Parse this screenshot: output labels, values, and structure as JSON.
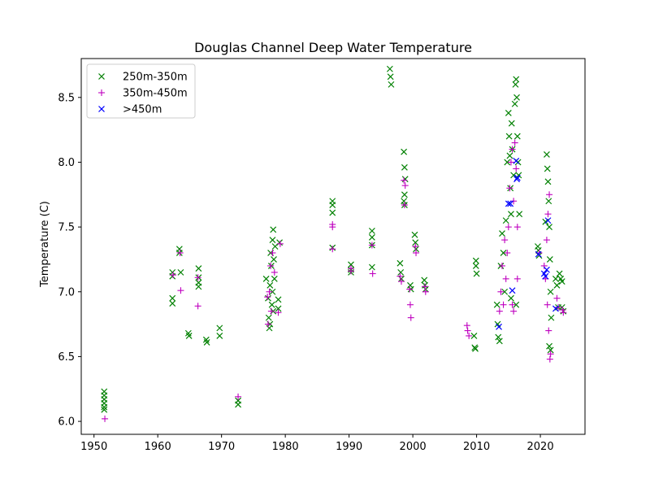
{
  "chart_data": {
    "type": "scatter",
    "title": "Douglas Channel Deep Water Temperature",
    "xlabel": "",
    "ylabel": "Temperature (C)",
    "xlim": [
      1948,
      2027
    ],
    "ylim": [
      5.9,
      8.8
    ],
    "xticks": [
      1950,
      1960,
      1970,
      1980,
      1990,
      2000,
      2010,
      2020
    ],
    "yticks": [
      6.0,
      6.5,
      7.0,
      7.5,
      8.0,
      8.5
    ],
    "grid": false,
    "legend_position": "top-left",
    "series": [
      {
        "name": "250m-350m",
        "marker": "x",
        "color": "#008000",
        "points": [
          [
            1951.6,
            6.23
          ],
          [
            1951.6,
            6.2
          ],
          [
            1951.6,
            6.17
          ],
          [
            1951.6,
            6.14
          ],
          [
            1951.6,
            6.11
          ],
          [
            1951.6,
            6.09
          ],
          [
            1962.3,
            7.15
          ],
          [
            1962.3,
            7.12
          ],
          [
            1962.3,
            6.95
          ],
          [
            1962.3,
            6.91
          ],
          [
            1963.4,
            7.33
          ],
          [
            1963.4,
            7.3
          ],
          [
            1963.6,
            7.15
          ],
          [
            1964.8,
            6.68
          ],
          [
            1964.9,
            6.66
          ],
          [
            1966.4,
            7.18
          ],
          [
            1966.4,
            7.11
          ],
          [
            1966.4,
            7.07
          ],
          [
            1966.4,
            7.04
          ],
          [
            1967.6,
            6.63
          ],
          [
            1967.7,
            6.61
          ],
          [
            1969.7,
            6.72
          ],
          [
            1969.7,
            6.66
          ],
          [
            1972.6,
            6.16
          ],
          [
            1972.6,
            6.13
          ],
          [
            1977.0,
            7.1
          ],
          [
            1977.3,
            6.95
          ],
          [
            1977.4,
            6.8
          ],
          [
            1977.5,
            6.72
          ],
          [
            1977.6,
            7.05
          ],
          [
            1977.6,
            6.75
          ],
          [
            1977.7,
            7.3
          ],
          [
            1977.8,
            7.2
          ],
          [
            1977.9,
            6.9
          ],
          [
            1978.0,
            7.4
          ],
          [
            1978.0,
            7.0
          ],
          [
            1978.1,
            7.48
          ],
          [
            1978.1,
            6.85
          ],
          [
            1978.2,
            7.25
          ],
          [
            1978.3,
            7.1
          ],
          [
            1978.4,
            7.35
          ],
          [
            1978.9,
            6.94
          ],
          [
            1978.9,
            6.87
          ],
          [
            1979.1,
            7.38
          ],
          [
            1987.4,
            7.7
          ],
          [
            1987.4,
            7.67
          ],
          [
            1987.4,
            7.61
          ],
          [
            1987.4,
            7.34
          ],
          [
            1990.3,
            7.21
          ],
          [
            1990.3,
            7.17
          ],
          [
            1990.3,
            7.15
          ],
          [
            1993.6,
            7.47
          ],
          [
            1993.6,
            7.42
          ],
          [
            1993.6,
            7.36
          ],
          [
            1993.6,
            7.19
          ],
          [
            1996.4,
            8.72
          ],
          [
            1996.5,
            8.66
          ],
          [
            1996.6,
            8.6
          ],
          [
            1998.0,
            7.22
          ],
          [
            1998.1,
            7.15
          ],
          [
            1998.2,
            7.1
          ],
          [
            1998.6,
            8.08
          ],
          [
            1998.7,
            7.96
          ],
          [
            1998.8,
            7.87
          ],
          [
            1998.7,
            7.75
          ],
          [
            1998.6,
            7.7
          ],
          [
            1998.7,
            7.67
          ],
          [
            1999.6,
            7.05
          ],
          [
            1999.7,
            7.02
          ],
          [
            2000.3,
            7.44
          ],
          [
            2000.4,
            7.38
          ],
          [
            2000.5,
            7.33
          ],
          [
            2001.8,
            7.09
          ],
          [
            2001.9,
            7.05
          ],
          [
            2002.0,
            7.02
          ],
          [
            2009.9,
            7.24
          ],
          [
            2009.9,
            7.2
          ],
          [
            2010.0,
            7.14
          ],
          [
            2009.6,
            6.66
          ],
          [
            2009.7,
            6.57
          ],
          [
            2009.8,
            6.56
          ],
          [
            2013.2,
            6.9
          ],
          [
            2013.3,
            6.75
          ],
          [
            2013.4,
            6.65
          ],
          [
            2013.6,
            6.62
          ],
          [
            2013.8,
            7.2
          ],
          [
            2014.0,
            7.45
          ],
          [
            2014.2,
            7.3
          ],
          [
            2014.4,
            7.0
          ],
          [
            2014.6,
            7.55
          ],
          [
            2014.8,
            8.0
          ],
          [
            2015.0,
            8.38
          ],
          [
            2015.1,
            8.2
          ],
          [
            2015.2,
            8.05
          ],
          [
            2015.3,
            7.8
          ],
          [
            2015.4,
            7.6
          ],
          [
            2015.5,
            8.3
          ],
          [
            2015.6,
            8.1
          ],
          [
            2015.8,
            7.9
          ],
          [
            2016.0,
            8.45
          ],
          [
            2016.1,
            8.6
          ],
          [
            2016.2,
            8.64
          ],
          [
            2016.3,
            8.5
          ],
          [
            2016.4,
            8.2
          ],
          [
            2016.5,
            8.0
          ],
          [
            2016.6,
            7.9
          ],
          [
            2016.7,
            7.6
          ],
          [
            2016.2,
            6.9
          ],
          [
            2015.4,
            6.95
          ],
          [
            2019.6,
            7.35
          ],
          [
            2019.7,
            7.32
          ],
          [
            2019.8,
            7.28
          ],
          [
            2020.8,
            7.54
          ],
          [
            2021.0,
            8.06
          ],
          [
            2021.1,
            7.95
          ],
          [
            2021.2,
            7.85
          ],
          [
            2021.3,
            7.7
          ],
          [
            2021.4,
            7.5
          ],
          [
            2021.5,
            7.25
          ],
          [
            2021.6,
            7.0
          ],
          [
            2021.7,
            6.8
          ],
          [
            2021.4,
            6.58
          ],
          [
            2021.6,
            6.55
          ],
          [
            2022.4,
            7.1
          ],
          [
            2022.6,
            7.05
          ],
          [
            2022.8,
            6.88
          ],
          [
            2023.0,
            7.14
          ],
          [
            2023.2,
            7.1
          ],
          [
            2023.4,
            7.08
          ],
          [
            2023.4,
            6.88
          ],
          [
            2023.6,
            6.85
          ]
        ]
      },
      {
        "name": "350m-450m",
        "marker": "+",
        "color": "#bf00bf",
        "points": [
          [
            1951.7,
            6.02
          ],
          [
            1962.4,
            7.13
          ],
          [
            1963.5,
            7.3
          ],
          [
            1963.6,
            7.01
          ],
          [
            1966.3,
            7.11
          ],
          [
            1966.3,
            6.89
          ],
          [
            1972.6,
            6.19
          ],
          [
            1977.2,
            6.96
          ],
          [
            1977.3,
            6.75
          ],
          [
            1977.5,
            7.0
          ],
          [
            1977.7,
            7.2
          ],
          [
            1977.8,
            6.85
          ],
          [
            1978.0,
            7.3
          ],
          [
            1978.3,
            7.15
          ],
          [
            1978.9,
            6.84
          ],
          [
            1979.2,
            7.37
          ],
          [
            1987.4,
            7.52
          ],
          [
            1987.4,
            7.5
          ],
          [
            1987.4,
            7.33
          ],
          [
            1990.3,
            7.18
          ],
          [
            1990.3,
            7.16
          ],
          [
            1993.6,
            7.36
          ],
          [
            1993.7,
            7.14
          ],
          [
            1998.0,
            7.12
          ],
          [
            1998.2,
            7.08
          ],
          [
            1998.6,
            7.86
          ],
          [
            1998.8,
            7.82
          ],
          [
            1998.7,
            7.67
          ],
          [
            1999.5,
            7.02
          ],
          [
            1999.6,
            6.9
          ],
          [
            1999.7,
            6.8
          ],
          [
            2000.4,
            7.35
          ],
          [
            2000.5,
            7.3
          ],
          [
            2001.9,
            7.04
          ],
          [
            2002.0,
            7.0
          ],
          [
            2008.5,
            6.74
          ],
          [
            2008.6,
            6.7
          ],
          [
            2008.8,
            6.66
          ],
          [
            2013.6,
            6.85
          ],
          [
            2013.8,
            7.0
          ],
          [
            2014.0,
            7.2
          ],
          [
            2014.2,
            6.9
          ],
          [
            2014.4,
            7.4
          ],
          [
            2014.6,
            7.1
          ],
          [
            2014.8,
            7.3
          ],
          [
            2015.0,
            7.5
          ],
          [
            2015.2,
            7.8
          ],
          [
            2015.4,
            8.0
          ],
          [
            2015.6,
            8.1
          ],
          [
            2015.8,
            7.7
          ],
          [
            2016.0,
            8.15
          ],
          [
            2016.2,
            7.95
          ],
          [
            2016.4,
            7.5
          ],
          [
            2015.6,
            6.9
          ],
          [
            2015.8,
            6.85
          ],
          [
            2016.4,
            7.1
          ],
          [
            2019.8,
            7.3
          ],
          [
            2020.6,
            7.2
          ],
          [
            2020.8,
            7.1
          ],
          [
            2021.0,
            7.4
          ],
          [
            2021.2,
            7.6
          ],
          [
            2021.4,
            7.75
          ],
          [
            2021.1,
            6.9
          ],
          [
            2021.3,
            6.7
          ],
          [
            2021.5,
            6.48
          ],
          [
            2021.6,
            6.52
          ],
          [
            2022.6,
            6.95
          ],
          [
            2022.8,
            6.88
          ],
          [
            2023.5,
            6.86
          ],
          [
            2023.6,
            6.84
          ]
        ]
      },
      {
        "name": ">450m",
        "marker": "x",
        "color": "#0000ff",
        "points": [
          [
            2013.5,
            6.73
          ],
          [
            2015.0,
            7.68
          ],
          [
            2015.3,
            7.68
          ],
          [
            2015.6,
            7.01
          ],
          [
            2016.2,
            8.01
          ],
          [
            2016.4,
            7.88
          ],
          [
            2016.3,
            7.87
          ],
          [
            2019.7,
            7.29
          ],
          [
            2020.6,
            7.14
          ],
          [
            2020.8,
            7.12
          ],
          [
            2021.0,
            7.17
          ],
          [
            2021.2,
            7.55
          ],
          [
            2022.4,
            6.87
          ]
        ]
      }
    ]
  }
}
